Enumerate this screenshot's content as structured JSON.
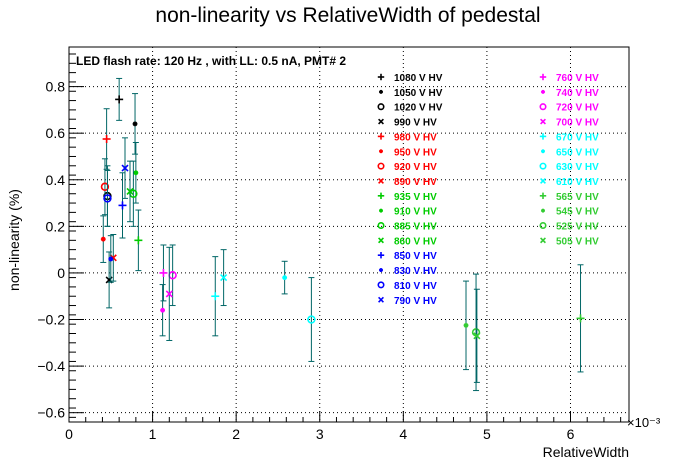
{
  "chart_data": {
    "type": "scatter",
    "title": "non-linearity vs RelativeWidth of pedestal",
    "subtitle": "LED flash rate: 120 Hz , with LL: 0.5 nA, PMT# 2",
    "xlabel": "RelativeWidth",
    "ylabel": "non-linearity (%)",
    "x_exponent_label": "×10⁻³",
    "x_ticks": [
      "0",
      "1",
      "2",
      "3",
      "4",
      "5",
      "6"
    ],
    "y_ticks": [
      "−0.6",
      "−0.4",
      "−0.2",
      "0",
      "0.2",
      "0.4",
      "0.6",
      "0.8"
    ],
    "xlim": [
      0,
      6.7
    ],
    "ylim": [
      -0.64,
      0.97
    ],
    "grid": true,
    "legend_position": "top-right",
    "colors": {
      "black": "#000000",
      "red": "#ff0000",
      "green": "#00cc00",
      "blue": "#0000ff",
      "magenta": "#ff00ff",
      "cyan": "#00ffff",
      "light-green": "#33cc33",
      "error-bar": "#006666"
    },
    "series": [
      {
        "name": "1080 V HV",
        "color": "#000000",
        "marker": "plus",
        "points": [
          {
            "x": 0.6,
            "y": 0.745,
            "err": 0.09
          }
        ]
      },
      {
        "name": "1050 V HV",
        "color": "#000000",
        "marker": "star",
        "points": [
          {
            "x": 0.79,
            "y": 0.64,
            "err": 0.13
          }
        ]
      },
      {
        "name": "1020 V HV",
        "color": "#000000",
        "marker": "circle",
        "points": [
          {
            "x": 0.46,
            "y": 0.33,
            "err": 0.13
          }
        ]
      },
      {
        "name": "990 V HV",
        "color": "#000000",
        "marker": "cross",
        "points": [
          {
            "x": 0.48,
            "y": -0.03,
            "err": 0.12
          }
        ]
      },
      {
        "name": "980 V HV",
        "color": "#ff0000",
        "marker": "plus",
        "points": [
          {
            "x": 0.45,
            "y": 0.575,
            "err": 0.13
          }
        ]
      },
      {
        "name": "950 V HV",
        "color": "#ff0000",
        "marker": "star",
        "points": [
          {
            "x": 0.41,
            "y": 0.145,
            "err": 0.1
          }
        ]
      },
      {
        "name": "920 V HV",
        "color": "#ff0000",
        "marker": "circle",
        "points": [
          {
            "x": 0.43,
            "y": 0.37,
            "err": 0.12
          }
        ]
      },
      {
        "name": "890 V HV",
        "color": "#ff0000",
        "marker": "cross",
        "points": [
          {
            "x": 0.53,
            "y": 0.065,
            "err": 0.1
          }
        ]
      },
      {
        "name": "935 V HV",
        "color": "#00cc00",
        "marker": "plus",
        "points": [
          {
            "x": 0.83,
            "y": 0.14,
            "err": 0.13
          }
        ]
      },
      {
        "name": "910 V HV",
        "color": "#00cc00",
        "marker": "star",
        "points": [
          {
            "x": 0.8,
            "y": 0.43,
            "err": 0.13
          }
        ]
      },
      {
        "name": "885 V HV",
        "color": "#00cc00",
        "marker": "circle",
        "points": [
          {
            "x": 0.77,
            "y": 0.34,
            "err": 0.14
          }
        ]
      },
      {
        "name": "860 V HV",
        "color": "#00cc00",
        "marker": "cross",
        "points": [
          {
            "x": 0.73,
            "y": 0.35,
            "err": 0.13
          }
        ]
      },
      {
        "name": "850 V HV",
        "color": "#0000ff",
        "marker": "plus",
        "points": [
          {
            "x": 0.64,
            "y": 0.29,
            "err": 0.14
          }
        ]
      },
      {
        "name": "830 V HV",
        "color": "#0000ff",
        "marker": "star",
        "points": [
          {
            "x": 0.5,
            "y": 0.06,
            "err": 0.1
          }
        ]
      },
      {
        "name": "810 V HV",
        "color": "#0000ff",
        "marker": "circle",
        "points": [
          {
            "x": 0.46,
            "y": 0.32,
            "err": 0.12
          }
        ]
      },
      {
        "name": "790 V HV",
        "color": "#0000ff",
        "marker": "cross",
        "points": [
          {
            "x": 0.67,
            "y": 0.45,
            "err": 0.13
          }
        ]
      },
      {
        "name": "760 V HV",
        "color": "#ff00ff",
        "marker": "plus",
        "points": [
          {
            "x": 1.13,
            "y": 0.0,
            "err": 0.12
          }
        ]
      },
      {
        "name": "740 V HV",
        "color": "#ff00ff",
        "marker": "star",
        "points": [
          {
            "x": 1.12,
            "y": -0.16,
            "err": 0.11
          }
        ]
      },
      {
        "name": "720 V HV",
        "color": "#ff00ff",
        "marker": "circle",
        "points": [
          {
            "x": 1.24,
            "y": -0.01,
            "err": 0.13
          }
        ]
      },
      {
        "name": "700 V HV",
        "color": "#ff00ff",
        "marker": "cross",
        "points": [
          {
            "x": 1.2,
            "y": -0.09,
            "err": 0.2
          }
        ]
      },
      {
        "name": "670 V HV",
        "color": "#00ffff",
        "marker": "plus",
        "points": [
          {
            "x": 1.75,
            "y": -0.1,
            "err": 0.17
          }
        ]
      },
      {
        "name": "650 V HV",
        "color": "#00ffff",
        "marker": "star",
        "points": [
          {
            "x": 2.58,
            "y": -0.02,
            "err": 0.07
          }
        ]
      },
      {
        "name": "630 V HV",
        "color": "#00ffff",
        "marker": "circle",
        "points": [
          {
            "x": 2.9,
            "y": -0.2,
            "err": 0.18
          }
        ]
      },
      {
        "name": "610 V HV",
        "color": "#00ffff",
        "marker": "cross",
        "points": [
          {
            "x": 1.85,
            "y": -0.02,
            "err": 0.12
          }
        ]
      },
      {
        "name": "565 V HV",
        "color": "#33cc33",
        "marker": "plus",
        "points": [
          {
            "x": 6.12,
            "y": -0.195,
            "err": 0.23
          }
        ]
      },
      {
        "name": "545 V HV",
        "color": "#33cc33",
        "marker": "star",
        "points": [
          {
            "x": 4.75,
            "y": -0.225,
            "err": 0.19
          }
        ]
      },
      {
        "name": "525 V HV",
        "color": "#33cc33",
        "marker": "circle",
        "points": [
          {
            "x": 4.87,
            "y": -0.255,
            "err": 0.25
          }
        ]
      },
      {
        "name": "505 V HV",
        "color": "#33cc33",
        "marker": "cross",
        "points": [
          {
            "x": 4.88,
            "y": -0.27,
            "err": 0.2
          }
        ]
      }
    ]
  }
}
